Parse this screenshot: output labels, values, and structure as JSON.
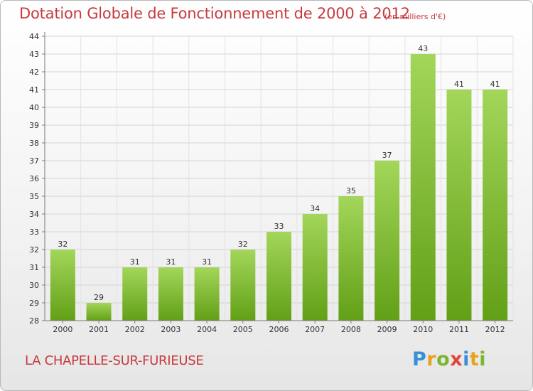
{
  "header": {
    "title": "Dotation Globale de Fonctionnement de 2000 à 2012",
    "unit": "(en milliers d'€)"
  },
  "footer": {
    "commune": "LA CHAPELLE-SUR-FURIEUSE",
    "logo_letters": [
      "P",
      "r",
      "o",
      "x",
      "i",
      "t",
      "i"
    ]
  },
  "chart_data": {
    "type": "bar",
    "categories": [
      "2000",
      "2001",
      "2002",
      "2003",
      "2004",
      "2005",
      "2006",
      "2007",
      "2008",
      "2009",
      "2010",
      "2011",
      "2012"
    ],
    "values": [
      32,
      29,
      31,
      31,
      31,
      32,
      33,
      34,
      35,
      37,
      43,
      41,
      41
    ],
    "data_labels": [
      "32",
      "29",
      "31",
      "31",
      "31",
      "32",
      "33",
      "34",
      "35",
      "37",
      "43",
      "41",
      "41"
    ],
    "ylim": [
      28,
      44
    ],
    "yticks": [
      28,
      29,
      30,
      31,
      32,
      33,
      34,
      35,
      36,
      37,
      38,
      39,
      40,
      41,
      42,
      43,
      44
    ],
    "grid": true,
    "colors": {
      "bar_top": "#a3d65a",
      "bar_bottom": "#62a017",
      "text_red": "#c73a3d"
    }
  }
}
